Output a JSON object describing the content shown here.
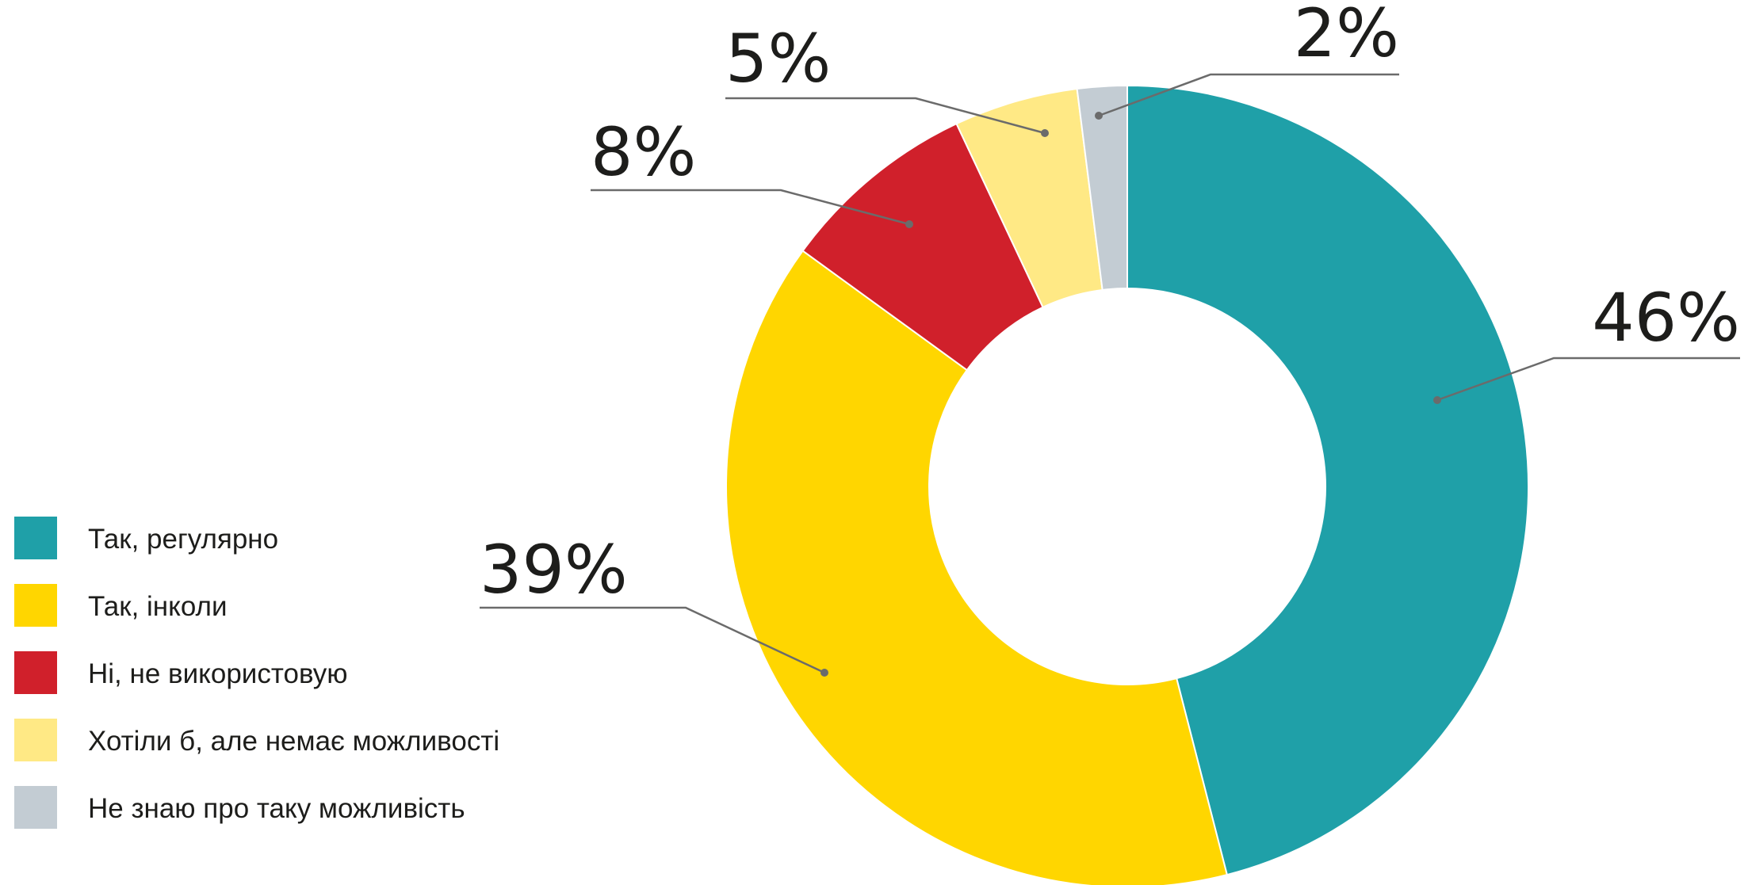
{
  "chart_data": {
    "type": "pie",
    "donut": true,
    "categories": [
      "Так, регулярно",
      "Так, інколи",
      "Ні, не використовую",
      "Хотіли б, але немає можливості",
      "Не знаю про таку можливість"
    ],
    "values": [
      46,
      39,
      8,
      5,
      2
    ],
    "data_labels": [
      "46%",
      "39%",
      "8%",
      "5%",
      "2%"
    ],
    "colors": [
      "#1fa0a8",
      "#ffd600",
      "#d0202b",
      "#ffe985",
      "#c3ccd3"
    ],
    "legend_position": "left-bottom"
  }
}
